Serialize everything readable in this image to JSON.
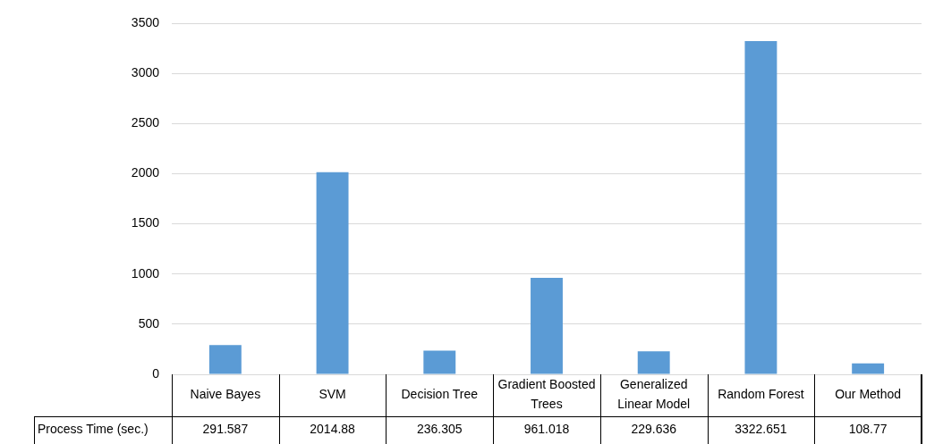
{
  "chart_data": {
    "type": "bar",
    "categories": [
      "Naive Bayes",
      "SVM",
      "Decision Tree",
      "Gradient Boosted Trees",
      "Generalized Linear Model",
      "Random Forest",
      "Our Method"
    ],
    "series": [
      {
        "name": "Process Time (sec.)",
        "color": "#5b9bd5",
        "values": [
          291.587,
          2014.88,
          236.305,
          961.018,
          229.636,
          3322.651,
          108.77
        ]
      }
    ],
    "ylim": [
      0,
      3500
    ],
    "yticks": [
      0,
      500,
      1000,
      1500,
      2000,
      2500,
      3000,
      3500
    ],
    "grid": "y",
    "data_labels": true,
    "legend": false
  }
}
